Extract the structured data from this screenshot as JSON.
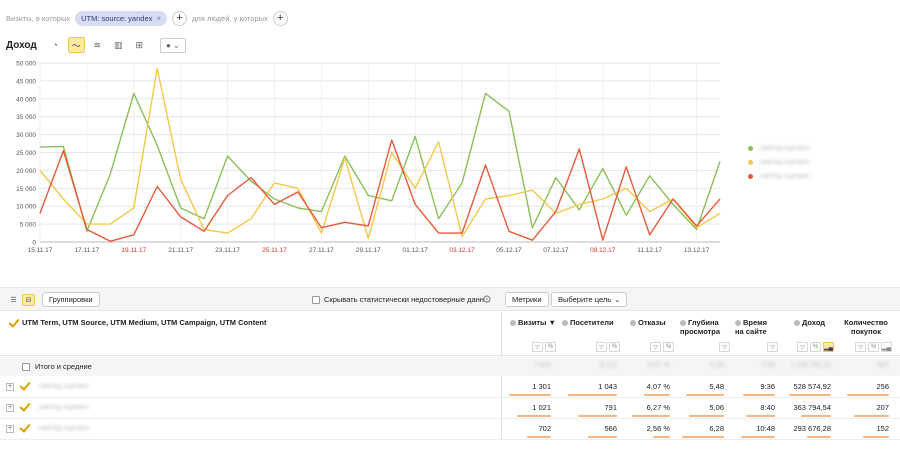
{
  "segment": {
    "prefix": "Визиты, в которых",
    "chip": "UTM: source: yandex",
    "suffix": "для людей, у которых"
  },
  "chart_header": {
    "title": "Доход"
  },
  "chart_data": {
    "type": "line",
    "x": [
      "15.11.17",
      "16.11.17",
      "17.11.17",
      "18.11.17",
      "19.11.17",
      "20.11.17",
      "21.11.17",
      "22.11.17",
      "23.11.17",
      "24.11.17",
      "25.11.17",
      "26.11.17",
      "27.11.17",
      "28.11.17",
      "29.11.17",
      "30.11.17",
      "01.12.17",
      "02.12.17",
      "03.12.17",
      "04.12.17",
      "05.12.17",
      "06.12.17",
      "07.12.17",
      "08.12.17",
      "09.12.17",
      "10.12.17",
      "11.12.17",
      "12.12.17",
      "13.12.17",
      "14.12.17"
    ],
    "xticks": [
      "15.11.17",
      "17.11.17",
      "19.11.17",
      "21.11.17",
      "23.11.17",
      "25.11.17",
      "27.11.17",
      "29.11.17",
      "01.12.17",
      "03.12.17",
      "05.12.17",
      "07.12.17",
      "09.12.17",
      "11.12.17",
      "13.12.17"
    ],
    "weekend_ticks": [
      "19.11.17",
      "25.11.17",
      "03.12.17",
      "09.12.17"
    ],
    "ylim": [
      0,
      50000
    ],
    "yticks": [
      "0",
      "5 000",
      "10 000",
      "15 000",
      "20 000",
      "25 000",
      "30 000",
      "35 000",
      "40 000",
      "45 000",
      "50 000"
    ],
    "grid": true,
    "legend_position": "right",
    "series": [
      {
        "color": "#8cbf5a",
        "values": [
          26500,
          26700,
          3000,
          19000,
          41500,
          27000,
          9500,
          6500,
          24000,
          17000,
          12000,
          9500,
          8500,
          24000,
          13000,
          11500,
          29500,
          6500,
          16500,
          41500,
          36500,
          4000,
          18000,
          9000,
          20500,
          7500,
          18500,
          10500,
          3500,
          22500
        ]
      },
      {
        "color": "#f2c94c",
        "values": [
          20000,
          12000,
          5000,
          5000,
          9500,
          48500,
          17500,
          3500,
          2500,
          6500,
          16500,
          15000,
          2500,
          23500,
          1000,
          25000,
          15000,
          28000,
          1500,
          12000,
          13000,
          14500,
          8000,
          10500,
          12000,
          15000,
          8500,
          12000,
          4000,
          8000
        ]
      },
      {
        "color": "#e55b3c",
        "values": [
          8000,
          25500,
          3500,
          200,
          2000,
          15500,
          7000,
          3000,
          13000,
          18000,
          10500,
          14000,
          4000,
          5500,
          4500,
          28500,
          10500,
          2500,
          2500,
          21500,
          3000,
          500,
          8500,
          26000,
          500,
          21000,
          2000,
          12000,
          4500,
          12000
        ]
      }
    ]
  },
  "legend": {
    "items": [
      {
        "label": "«метод оценки»",
        "color": "#8cbf5a"
      },
      {
        "label": "«метод оценки»",
        "color": "#f2c94c"
      },
      {
        "label": "«метод оценки»",
        "color": "#e55b3c"
      }
    ]
  },
  "table_toolbar": {
    "groupings": "Группировки",
    "hide_stat": "Скрывать статистически недостоверные данн...",
    "metrics": "Метрики",
    "goal": "Выберите цель"
  },
  "table": {
    "dimension_title": "UTM Term, UTM Source, UTM Medium, UTM Campaign, UTM Content",
    "columns": [
      {
        "label": "Визиты",
        "sort": "▼"
      },
      {
        "label": "Посетители"
      },
      {
        "label": "Отказы"
      },
      {
        "label": "Глубина просмотра"
      },
      {
        "label": "Время на сайте"
      },
      {
        "label": "Доход"
      },
      {
        "label": "Количество покупок"
      }
    ],
    "totals": {
      "label": "Итого и средние",
      "values": [
        "7 024",
        "6 112",
        "5,67 %",
        "4,33",
        "7:29",
        "1 240 792,11",
        "907"
      ]
    },
    "rows": [
      {
        "name": "«метод оценки»",
        "values": [
          "1 301",
          "1 043",
          "4,07 %",
          "5,48",
          "9:36",
          "528 574,92",
          "256"
        ],
        "bars": [
          0.95,
          0.95,
          0.64,
          0.87,
          0.9,
          0.95,
          0.95
        ]
      },
      {
        "name": "«метод оценки»",
        "values": [
          "1 021",
          "791",
          "6,27 %",
          "5,06",
          "8:40",
          "363 794,54",
          "207"
        ],
        "bars": [
          0.78,
          0.75,
          0.95,
          0.8,
          0.8,
          0.68,
          0.8
        ]
      },
      {
        "name": "«метод оценки»",
        "values": [
          "702",
          "566",
          "2,56 %",
          "6,28",
          "10:48",
          "293 676,28",
          "152"
        ],
        "bars": [
          0.55,
          0.55,
          0.42,
          0.95,
          0.95,
          0.55,
          0.6
        ]
      }
    ]
  }
}
